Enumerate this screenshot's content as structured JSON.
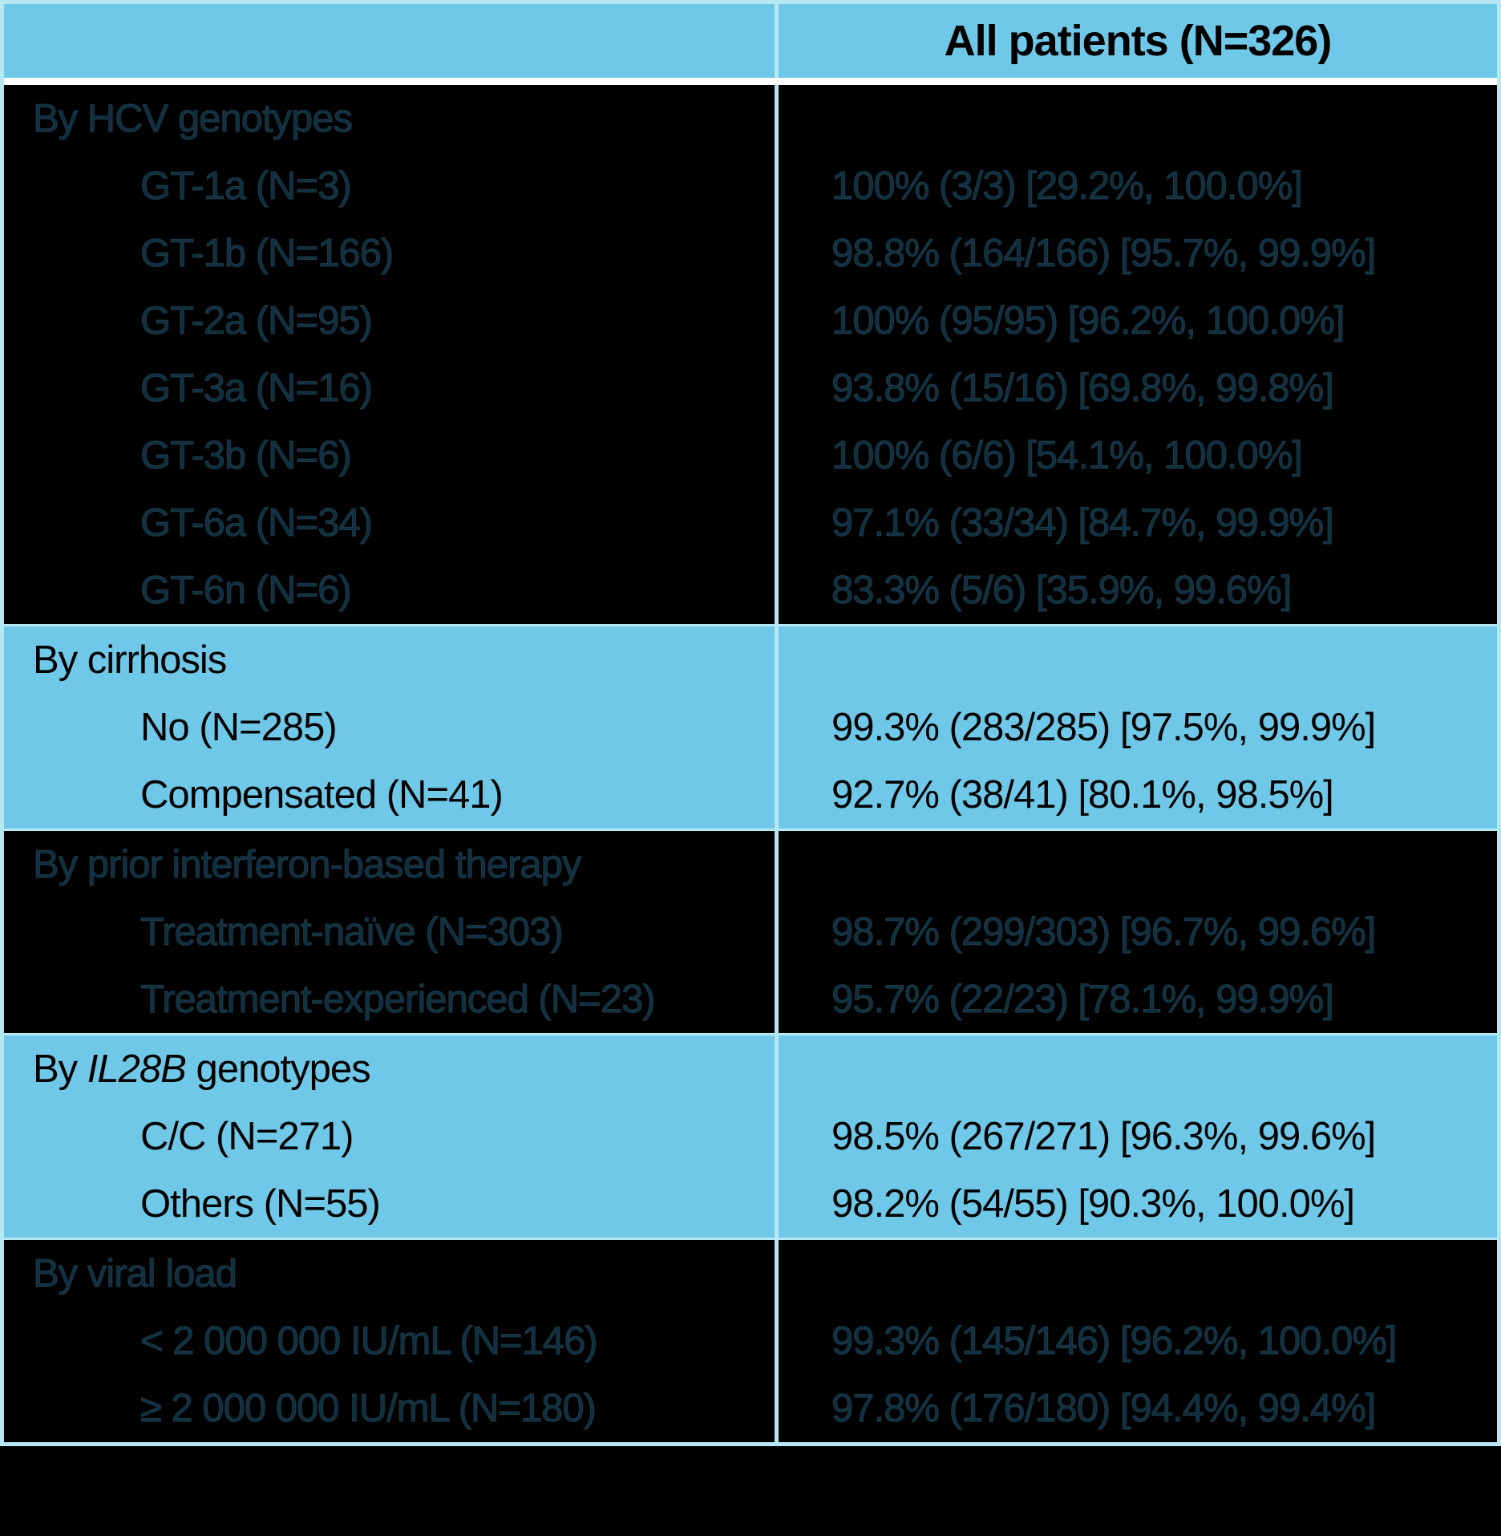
{
  "colors": {
    "band_blue": "#6fc8e7",
    "grid_cyan": "#b6e8f3",
    "separator_white": "#ffffff",
    "dark_band_bg": "#000000",
    "dark_band_text": "#102e3d"
  },
  "header": {
    "all_patients_label": "All patients (N=326)"
  },
  "sections": [
    {
      "theme": "dark",
      "title": "By HCV genotypes",
      "rows": [
        {
          "label": "GT-1a (N=3)",
          "value": "100% (3/3) [29.2%, 100.0%]"
        },
        {
          "label": "GT-1b (N=166)",
          "value": "98.8% (164/166) [95.7%, 99.9%]"
        },
        {
          "label": "GT-2a (N=95)",
          "value": "100% (95/95) [96.2%, 100.0%]"
        },
        {
          "label": "GT-3a (N=16)",
          "value": "93.8% (15/16) [69.8%, 99.8%]"
        },
        {
          "label": "GT-3b (N=6)",
          "value": "100% (6/6) [54.1%, 100.0%]"
        },
        {
          "label": "GT-6a (N=34)",
          "value": "97.1% (33/34) [84.7%, 99.9%]"
        },
        {
          "label": "GT-6n (N=6)",
          "value": "83.3% (5/6) [35.9%, 99.6%]"
        }
      ]
    },
    {
      "theme": "blue",
      "title": "By cirrhosis",
      "rows": [
        {
          "label": "No (N=285)",
          "value": "99.3% (283/285) [97.5%, 99.9%]"
        },
        {
          "label": "Compensated (N=41)",
          "value": "92.7% (38/41) [80.1%, 98.5%]"
        }
      ]
    },
    {
      "theme": "dark",
      "title": "By prior interferon-based therapy",
      "rows": [
        {
          "label": "Treatment-naïve (N=303)",
          "value": "98.7% (299/303) [96.7%, 99.6%]"
        },
        {
          "label": "Treatment-experienced (N=23)",
          "value": "95.7% (22/23) [78.1%, 99.9%]"
        }
      ]
    },
    {
      "theme": "blue",
      "title_prefix": "By ",
      "title_italic": "IL28B",
      "title_suffix": " genotypes",
      "rows": [
        {
          "label": "C/C (N=271)",
          "value": "98.5% (267/271) [96.3%, 99.6%]"
        },
        {
          "label": "Others (N=55)",
          "value": "98.2% (54/55) [90.3%, 100.0%]"
        }
      ]
    },
    {
      "theme": "dark",
      "title": "By viral load",
      "rows": [
        {
          "label": "< 2 000 000 IU/mL (N=146)",
          "value": "99.3% (145/146) [96.2%, 100.0%]"
        },
        {
          "label": "≥ 2 000 000 IU/mL (N=180)",
          "value": "97.8% (176/180) [94.4%, 99.4%]"
        }
      ]
    }
  ]
}
